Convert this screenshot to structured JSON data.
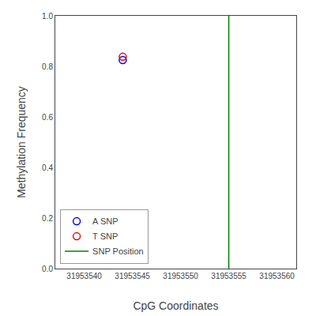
{
  "chart_data": {
    "type": "scatter",
    "xlabel": "CpG Coordinates",
    "ylabel": "Methylation Frequency",
    "xlim": [
      31953537,
      31953562
    ],
    "ylim": [
      0,
      1
    ],
    "xticks": [
      31953540,
      31953545,
      31953550,
      31953555,
      31953560
    ],
    "yticks": [
      {
        "value": 0,
        "label": "0.0"
      },
      0.2,
      0.4,
      0.6,
      0.8,
      {
        "value": 1,
        "label": "1.0"
      }
    ],
    "grid": false,
    "legend": "lower left",
    "series": [
      {
        "name": "A SNP",
        "color": "blue",
        "marker": "open circle",
        "x": [
          31953544
        ],
        "values": [
          0.825
        ]
      },
      {
        "name": "T SNP",
        "color": "red",
        "marker": "open circle",
        "x": [
          31953544
        ],
        "values": [
          0.838
        ]
      },
      {
        "name": "SNP Position",
        "color": "green",
        "type": "vline",
        "x": [
          31953555
        ]
      }
    ]
  }
}
